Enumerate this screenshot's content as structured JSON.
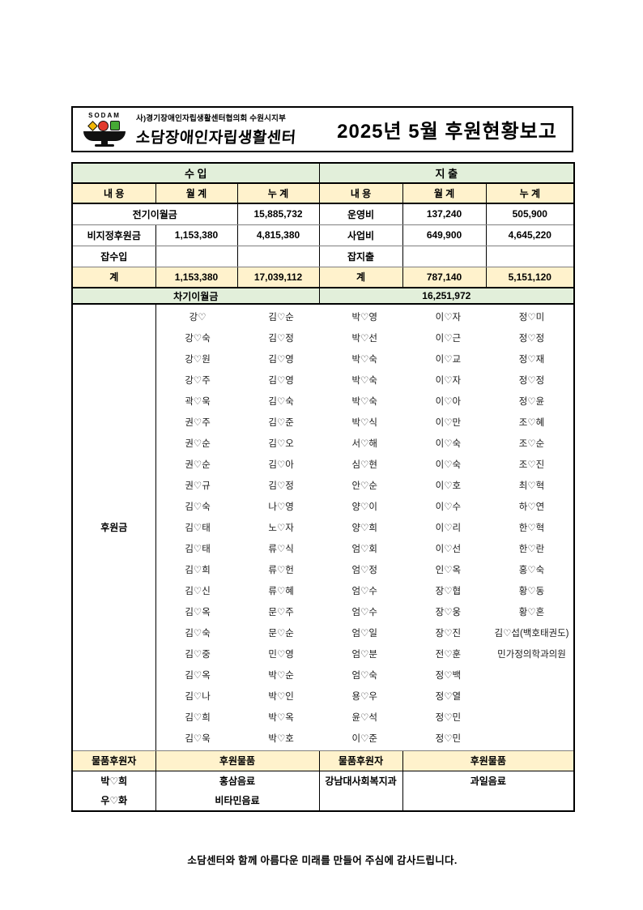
{
  "colors": {
    "section_header_green": "#E2EFDA",
    "column_header_cream": "#FFF2CC"
  },
  "header": {
    "logo_text": "SODAM",
    "logo_icons": [
      "yellow-diamond-icon",
      "red-circle-icon",
      "green-square-icon",
      "black-bowl-icon"
    ],
    "org_small": "사)경기장애인자립생활센터협의회 수원시지부",
    "org_brand": "소담장애인자립생활센터",
    "title": "2025년 5월 후원현황보고"
  },
  "summary": {
    "section_income": "수 입",
    "section_expense": "지 출",
    "h_content": "내 용",
    "h_month": "월 계",
    "h_cum": "누 계",
    "rows": {
      "carry_prev": {
        "label": "전기이월금",
        "cum": "15,885,732",
        "exp_label": "운영비",
        "exp_month": "137,240",
        "exp_cum": "505,900"
      },
      "undesignated": {
        "label": "비지정후원금",
        "month": "1,153,380",
        "cum": "4,815,380",
        "exp_label": "사업비",
        "exp_month": "649,900",
        "exp_cum": "4,645,220"
      },
      "misc": {
        "label": "잡수입",
        "month": "",
        "cum": "",
        "exp_label": "잡지출",
        "exp_month": "",
        "exp_cum": ""
      },
      "total": {
        "label": "계",
        "month": "1,153,380",
        "cum": "17,039,112",
        "exp_label": "계",
        "exp_month": "787,140",
        "exp_cum": "5,151,120"
      },
      "carry_next": {
        "label": "차기이월금",
        "value": "16,251,972"
      }
    }
  },
  "donors": {
    "label": "후원금",
    "rows": [
      [
        "강♡",
        "김♡순",
        "박♡영",
        "이♡자",
        "정♡미"
      ],
      [
        "강♡숙",
        "김♡정",
        "박♡선",
        "이♡근",
        "정♡정"
      ],
      [
        "강♡원",
        "김♡영",
        "박♡숙",
        "이♡교",
        "정♡재"
      ],
      [
        "강♡주",
        "김♡영",
        "박♡숙",
        "이♡자",
        "정♡정"
      ],
      [
        "곽♡욱",
        "김♡숙",
        "박♡숙",
        "이♡아",
        "정♡윤"
      ],
      [
        "권♡주",
        "김♡준",
        "박♡식",
        "이♡만",
        "조♡혜"
      ],
      [
        "권♡순",
        "김♡오",
        "서♡해",
        "이♡숙",
        "조♡순"
      ],
      [
        "권♡순",
        "김♡아",
        "심♡현",
        "이♡숙",
        "조♡진"
      ],
      [
        "권♡규",
        "김♡정",
        "안♡순",
        "이♡호",
        "최♡혁"
      ],
      [
        "김♡숙",
        "나♡영",
        "양♡이",
        "이♡수",
        "하♡연"
      ],
      [
        "김♡태",
        "노♡자",
        "양♡희",
        "이♡리",
        "한♡혁"
      ],
      [
        "김♡태",
        "류♡식",
        "엄♡회",
        "이♡선",
        "한♡란"
      ],
      [
        "김♡희",
        "류♡헌",
        "엄♡정",
        "인♡옥",
        "홍♡숙"
      ],
      [
        "김♡신",
        "류♡혜",
        "엄♡수",
        "장♡협",
        "황♡동"
      ],
      [
        "김♡옥",
        "문♡주",
        "엄♡수",
        "장♡웅",
        "황♡혼"
      ],
      [
        "김♡숙",
        "문♡순",
        "엄♡일",
        "장♡진",
        "김♡섭(백호태권도)"
      ],
      [
        "김♡중",
        "민♡영",
        "엄♡분",
        "전♡훈",
        "민가정의학과의원"
      ],
      [
        "김♡옥",
        "박♡순",
        "엄♡숙",
        "정♡백",
        ""
      ],
      [
        "김♡나",
        "박♡인",
        "용♡우",
        "정♡열",
        ""
      ],
      [
        "김♡희",
        "박♡옥",
        "윤♡석",
        "정♡민",
        ""
      ],
      [
        "김♡욱",
        "박♡호",
        "이♡준",
        "정♡민",
        ""
      ]
    ]
  },
  "goods": {
    "donor_header": "물품후원자",
    "item_header": "후원물품",
    "left_donor_line1": "박♡희",
    "left_donor_line2": "우♡화",
    "left_item_line1": "홍삼음료",
    "left_item_line2": "비타민음료",
    "right_donor_line1": "강남대사회복지과",
    "right_donor_line2": "",
    "right_item_line1": "과일음료",
    "right_item_line2": ""
  },
  "footer": {
    "thanks": "소담센터와 함께 아름다운 미래를 만들어 주심에 감사드립니다."
  }
}
